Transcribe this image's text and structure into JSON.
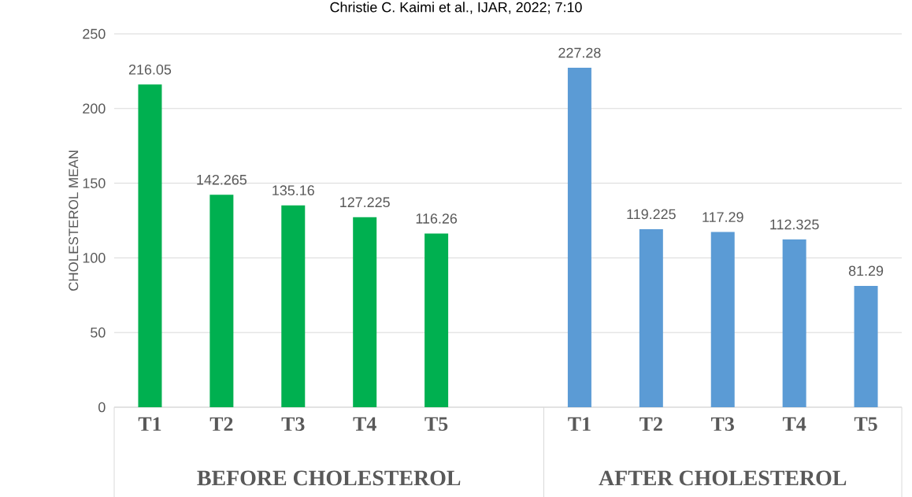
{
  "chart_data": {
    "type": "bar",
    "title": "Christie C. Kaimi et al., IJAR, 2022; 7:10",
    "ylabel": "CHOLESTEROL MEAN",
    "categories": [
      "T1",
      "T2",
      "T3",
      "T4",
      "T5",
      null,
      "T1",
      "T2",
      "T3",
      "T4",
      "T5"
    ],
    "series": [
      {
        "name": "BEFORE CHOLESTEROL",
        "color": "#00b050",
        "values": [
          216.05,
          142.265,
          135.16,
          127.225,
          116.26,
          null,
          null,
          null,
          null,
          null,
          null
        ]
      },
      {
        "name": "AFTER CHOLESTEROL",
        "color": "#5b9bd5",
        "values": [
          null,
          null,
          null,
          null,
          null,
          null,
          227.28,
          119.225,
          117.29,
          112.325,
          81.29
        ]
      }
    ],
    "ylim": [
      0,
      250
    ],
    "yticks": [
      0,
      50,
      100,
      150,
      200,
      250
    ],
    "grid": "y",
    "data_labels": true
  }
}
